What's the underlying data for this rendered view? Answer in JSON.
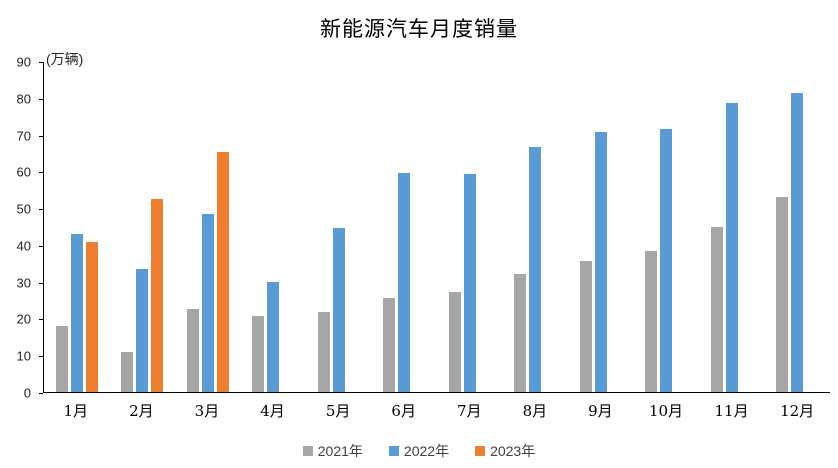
{
  "title": "新能源汽车月度销量",
  "y_axis_unit": "(万辆)",
  "chart_data": {
    "type": "bar",
    "title": "新能源汽车月度销量",
    "ylabel": "(万辆)",
    "xlabel": "",
    "ylim": [
      0,
      90
    ],
    "y_ticks": [
      0,
      10,
      20,
      30,
      40,
      50,
      60,
      70,
      80,
      90
    ],
    "grid": false,
    "legend_position": "bottom",
    "categories": [
      "1月",
      "2月",
      "3月",
      "4月",
      "5月",
      "6月",
      "7月",
      "8月",
      "9月",
      "10月",
      "11月",
      "12月"
    ],
    "series": [
      {
        "name": "2021年",
        "color": "#A6A6A6",
        "values": [
          17.9,
          11.0,
          22.6,
          20.6,
          21.7,
          25.6,
          27.1,
          32.1,
          35.7,
          38.3,
          45.0,
          53.1
        ]
      },
      {
        "name": "2022年",
        "color": "#5B9BD5",
        "values": [
          43.1,
          33.4,
          48.4,
          29.9,
          44.7,
          59.6,
          59.3,
          66.6,
          70.8,
          71.4,
          78.6,
          81.4
        ]
      },
      {
        "name": "2023年",
        "color": "#ED7D31",
        "values": [
          40.8,
          52.5,
          65.3,
          null,
          null,
          null,
          null,
          null,
          null,
          null,
          null,
          null
        ]
      }
    ]
  },
  "legend": {
    "items": [
      {
        "label": "2021年",
        "color": "#A6A6A6"
      },
      {
        "label": "2022年",
        "color": "#5B9BD5"
      },
      {
        "label": "2023年",
        "color": "#ED7D31"
      }
    ]
  }
}
